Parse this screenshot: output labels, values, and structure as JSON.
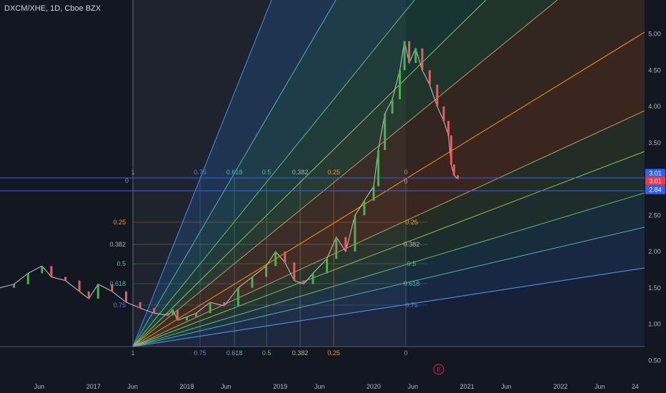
{
  "header": {
    "symbol": "DXCM/XHE, 1D, Cboe BZX"
  },
  "colors": {
    "bg": "#131722",
    "price_up": "#4caf50",
    "price_down": "#e06060",
    "last_price": "#f23645",
    "level_line": "#2962ff",
    "earnings": "#e91e63"
  },
  "price_axis": {
    "labels": [
      "5.00",
      "4.50",
      "4.00",
      "3.50",
      "2.50",
      "2.00",
      "1.50",
      "1.00",
      "0.50"
    ],
    "values": [
      5.0,
      4.5,
      4.0,
      3.5,
      2.5,
      2.0,
      1.5,
      1.0,
      0.5
    ],
    "badges": [
      {
        "text": "3.01",
        "value": 3.08,
        "color": "#2962ff"
      },
      {
        "text": "3.01",
        "value": 2.97,
        "color": "#f23645"
      },
      {
        "text": "2.84",
        "value": 2.85,
        "color": "#2962ff"
      }
    ]
  },
  "time_axis": [
    {
      "label": "Jun",
      "x": 2016.42
    },
    {
      "label": "2017",
      "x": 2017.0
    },
    {
      "label": "Jun",
      "x": 2017.42
    },
    {
      "label": "2018",
      "x": 2018.0
    },
    {
      "label": "Jun",
      "x": 2018.42
    },
    {
      "label": "2019",
      "x": 2019.0
    },
    {
      "label": "Jun",
      "x": 2019.42
    },
    {
      "label": "2020",
      "x": 2020.0
    },
    {
      "label": "Jun",
      "x": 2020.42
    },
    {
      "label": "2021",
      "x": 2021.0
    },
    {
      "label": "Jun",
      "x": 2021.42
    },
    {
      "label": "2022",
      "x": 2022.0
    },
    {
      "label": "Jun",
      "x": 2022.42
    },
    {
      "label": "24",
      "x": 2022.8
    }
  ],
  "gann_box": {
    "start_labels": [
      "1",
      "1"
    ],
    "zero_label": "0",
    "levels": [
      {
        "label": "0.75",
        "color": "#4a8fe0"
      },
      {
        "label": "0.618",
        "color": "#4db6ac"
      },
      {
        "label": "0.5",
        "color": "#66bb6a"
      },
      {
        "label": "0.382",
        "color": "#aeb6a0"
      },
      {
        "label": "0.25",
        "color": "#ff9800"
      },
      {
        "label": "0",
        "color": "#9598a1"
      }
    ]
  },
  "earnings_marker": {
    "label": "E"
  },
  "chart_data": {
    "type": "line",
    "title": "DXCM/XHE, 1D, Cboe BZX",
    "xlabel": "",
    "ylabel": "",
    "ylim": [
      0.4,
      5.4
    ],
    "xlim": [
      2016.0,
      2023.1
    ],
    "series": [
      {
        "x": [
          2016.0,
          2016.15,
          2016.3,
          2016.45,
          2016.55,
          2016.7,
          2016.85,
          2016.95,
          2017.05,
          2017.2,
          2017.35,
          2017.5,
          2017.65,
          2017.8,
          2017.85,
          2017.9,
          2018.0,
          2018.1,
          2018.25,
          2018.4,
          2018.55,
          2018.7,
          2018.85,
          2018.95,
          2019.05,
          2019.15,
          2019.25,
          2019.35,
          2019.5,
          2019.6,
          2019.7,
          2019.8,
          2019.9,
          2020.0,
          2020.05,
          2020.12,
          2020.2,
          2020.28,
          2020.33,
          2020.38,
          2020.45,
          2020.52,
          2020.6,
          2020.68,
          2020.75,
          2020.8,
          2020.83,
          2020.86,
          2020.9
        ],
        "values": [
          1.5,
          1.55,
          1.7,
          1.8,
          1.65,
          1.6,
          1.45,
          1.35,
          1.55,
          1.45,
          1.3,
          1.22,
          1.15,
          1.12,
          1.2,
          1.05,
          1.1,
          1.15,
          1.3,
          1.25,
          1.5,
          1.65,
          1.8,
          2.0,
          1.85,
          1.6,
          1.55,
          1.7,
          1.9,
          2.2,
          2.0,
          2.5,
          2.7,
          2.9,
          3.4,
          3.9,
          4.1,
          4.5,
          4.9,
          4.6,
          4.8,
          4.5,
          4.3,
          4.0,
          3.8,
          3.6,
          3.2,
          3.05,
          3.0
        ]
      }
    ]
  }
}
